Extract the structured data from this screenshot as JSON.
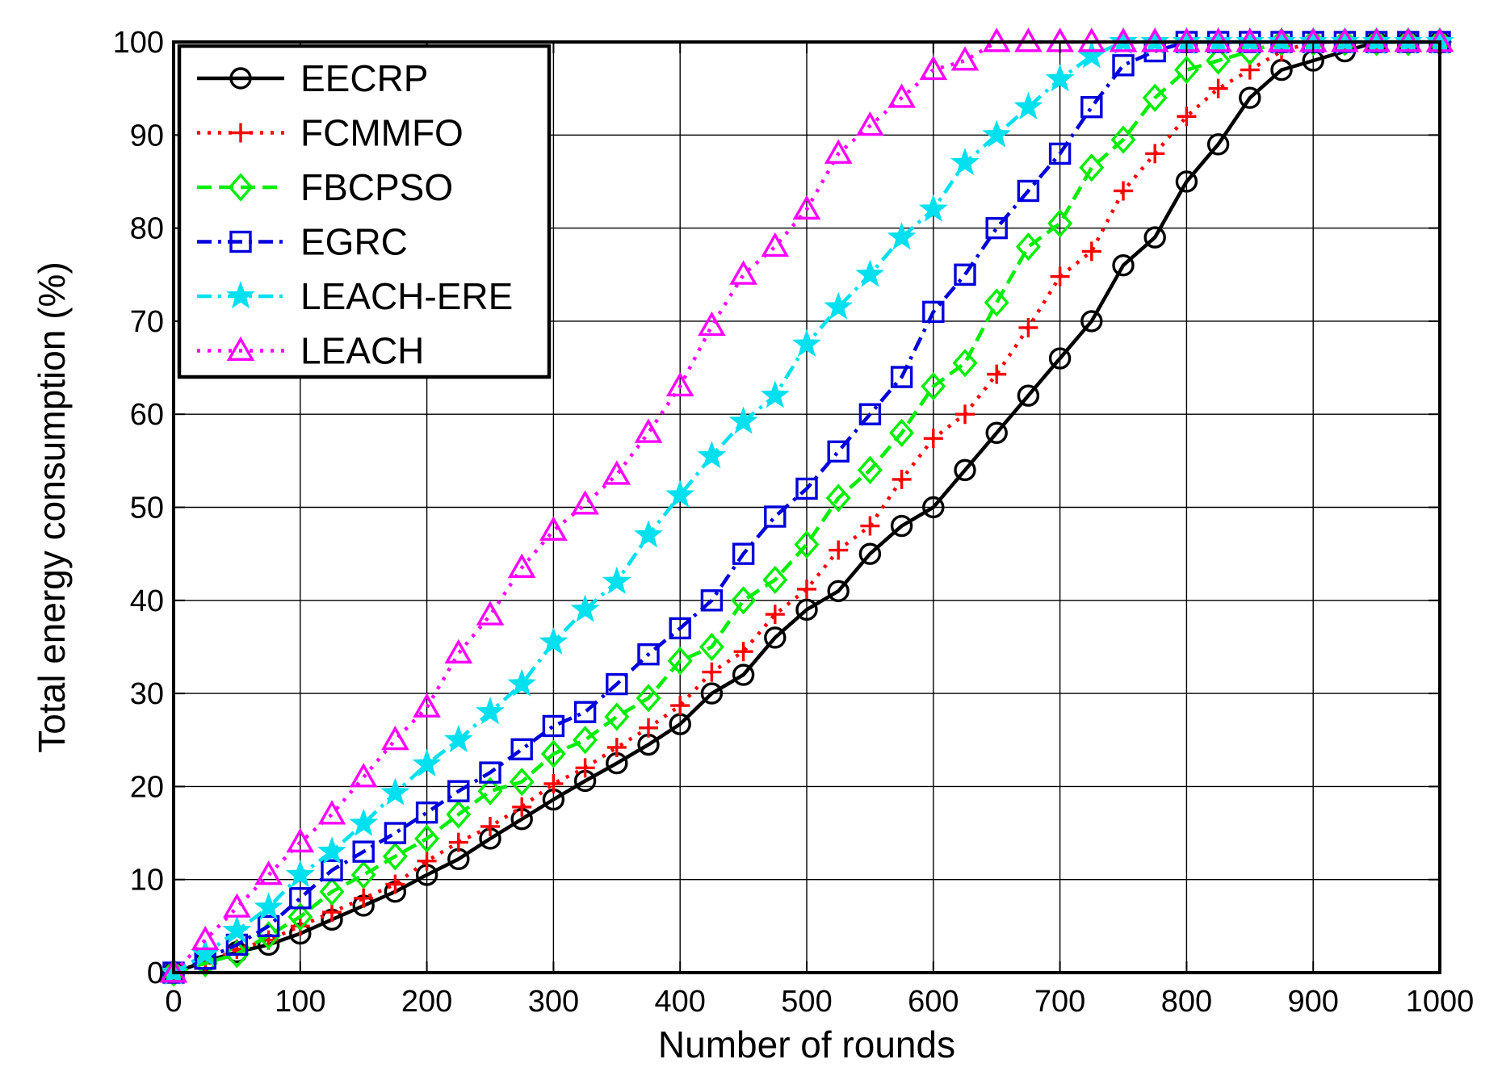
{
  "chart_data": {
    "type": "line",
    "xlabel": "Number of rounds",
    "ylabel": "Total energy consumption (%)",
    "xlim": [
      0,
      1000
    ],
    "ylim": [
      0,
      100
    ],
    "xticks": [
      0,
      100,
      200,
      300,
      400,
      500,
      600,
      700,
      800,
      900,
      1000
    ],
    "yticks": [
      0,
      10,
      20,
      30,
      40,
      50,
      60,
      70,
      80,
      90,
      100
    ],
    "grid": true,
    "legend_position": "top-left",
    "x": [
      0,
      25,
      50,
      75,
      100,
      125,
      150,
      175,
      200,
      225,
      250,
      275,
      300,
      325,
      350,
      375,
      400,
      425,
      450,
      475,
      500,
      525,
      550,
      575,
      600,
      625,
      650,
      675,
      700,
      725,
      750,
      775,
      800,
      825,
      850,
      875,
      900,
      925,
      950,
      975,
      1000
    ],
    "series": [
      {
        "name": "EECRP",
        "color": "#000000",
        "marker": "circle",
        "dash": "solid",
        "values": [
          0,
          1.2,
          2.2,
          3,
          4.2,
          5.7,
          7.2,
          8.7,
          10.5,
          12.2,
          14.4,
          16.5,
          18.6,
          20.6,
          22.5,
          24.5,
          26.7,
          30,
          32,
          36,
          39,
          41,
          45,
          48,
          50,
          54,
          58,
          62,
          66,
          70,
          76,
          79,
          85,
          89,
          94,
          97,
          98,
          99,
          100,
          100,
          100
        ]
      },
      {
        "name": "FCMMFO",
        "color": "#ff0000",
        "marker": "plus",
        "dash": "dotted",
        "values": [
          0,
          1,
          2.5,
          3.5,
          5,
          6.5,
          8,
          9.5,
          12,
          14,
          15.7,
          17.8,
          20.3,
          22,
          24.2,
          26.3,
          28.7,
          32.3,
          34.5,
          38.5,
          41.2,
          45.4,
          48,
          53,
          57.4,
          60,
          64.3,
          69.3,
          74.8,
          77.5,
          84,
          88,
          92,
          95,
          97,
          99,
          100,
          100,
          100,
          100,
          100
        ]
      },
      {
        "name": "FBCPSO",
        "color": "#00ee00",
        "marker": "diamond",
        "dash": "dashed",
        "values": [
          0,
          1,
          2,
          4,
          6,
          8.7,
          10.5,
          12.5,
          14.4,
          17,
          19.5,
          20.5,
          23.5,
          25,
          27.5,
          29.5,
          33.5,
          35,
          40,
          42.2,
          46,
          51,
          54,
          58,
          63,
          65.5,
          72,
          78,
          80.5,
          86.5,
          89.5,
          94,
          97,
          98,
          99,
          100,
          100,
          100,
          100,
          100,
          100
        ]
      },
      {
        "name": "EGRC",
        "color": "#0000dd",
        "marker": "square",
        "dash": "dashdot",
        "values": [
          0,
          1.5,
          3,
          5,
          8,
          11,
          13,
          15,
          17.2,
          19.5,
          21.5,
          24,
          26.5,
          28,
          31,
          34.2,
          37,
          40,
          45,
          49,
          52,
          56,
          60,
          64,
          71,
          75,
          80,
          84,
          88,
          93,
          97.5,
          99,
          100,
          100,
          100,
          100,
          100,
          100,
          100,
          100,
          100
        ]
      },
      {
        "name": "LEACH-ERE",
        "color": "#00e0ee",
        "marker": "star",
        "dash": "dashdot",
        "values": [
          0,
          2,
          4.5,
          7,
          10.5,
          13,
          16,
          19.3,
          22.4,
          25,
          28,
          31,
          35.5,
          39,
          42,
          47,
          51.3,
          55.5,
          59.2,
          62,
          67.5,
          71.5,
          75,
          79,
          82,
          87,
          90,
          93,
          96,
          98.5,
          100,
          100,
          100,
          100,
          100,
          100,
          100,
          100,
          100,
          100,
          100
        ]
      },
      {
        "name": "LEACH",
        "color": "#ff00ff",
        "marker": "triangle",
        "dash": "dotted",
        "values": [
          0,
          3.5,
          7,
          10.5,
          14,
          17,
          21,
          25,
          28.5,
          34.3,
          38.4,
          43.5,
          47.5,
          50.3,
          53.5,
          58,
          63,
          69.5,
          75,
          78,
          82,
          88,
          91,
          94,
          97,
          98,
          100,
          100,
          100,
          100,
          100,
          100,
          100,
          100,
          100,
          100,
          100,
          100,
          100,
          100,
          100
        ]
      }
    ]
  }
}
